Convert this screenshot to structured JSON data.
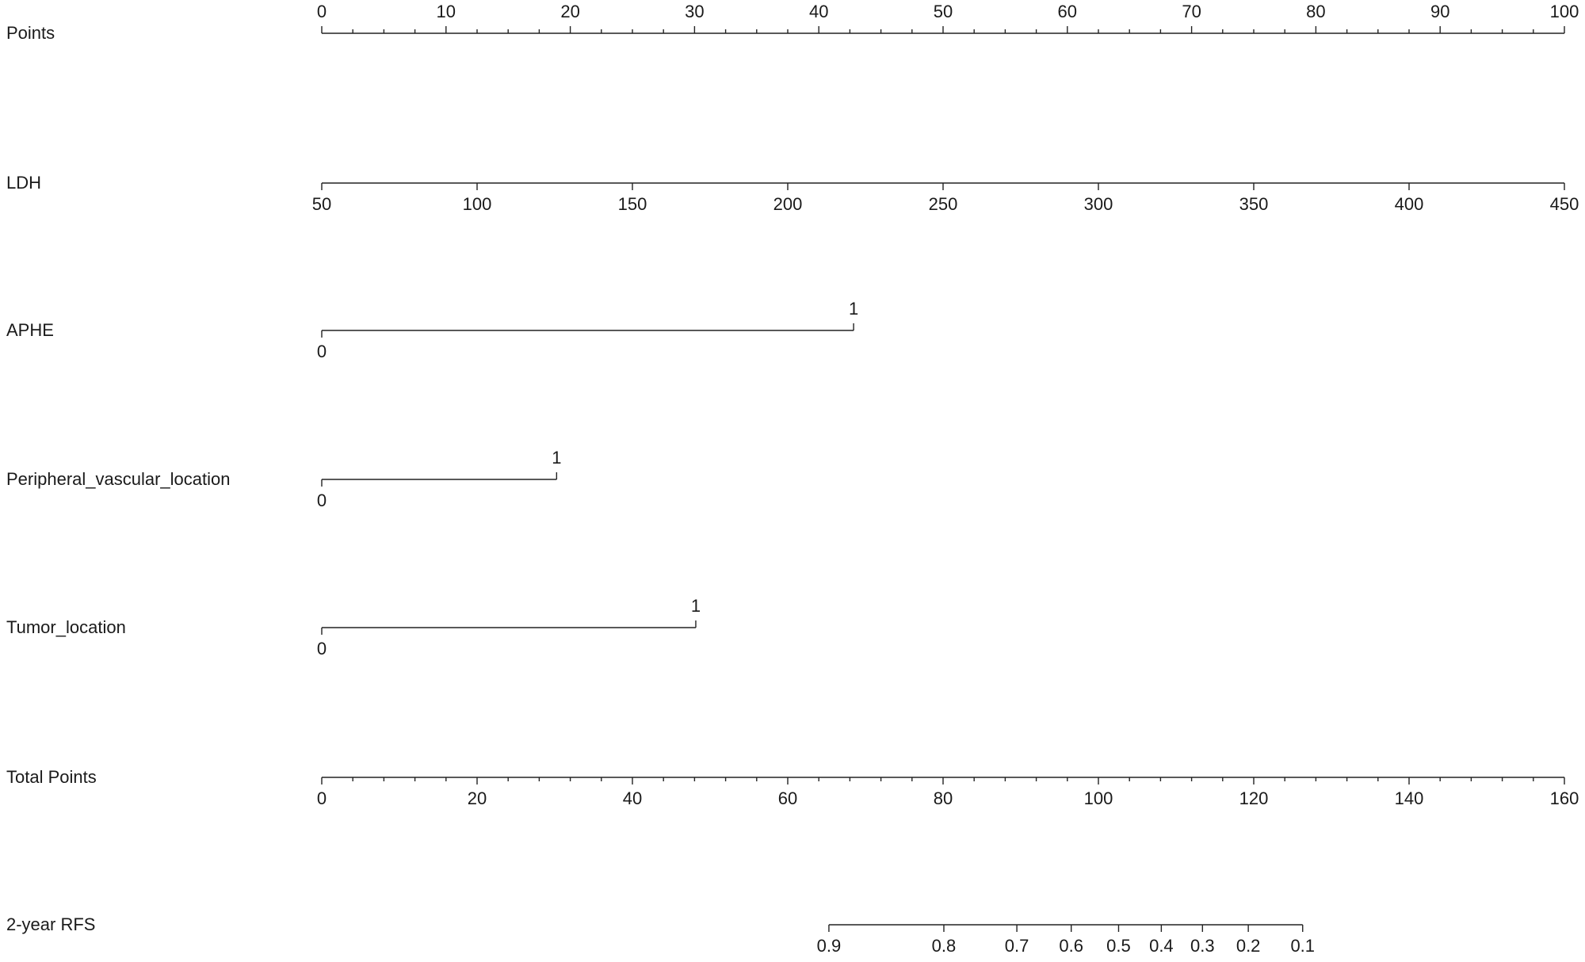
{
  "chart_data": {
    "type": "nomogram",
    "rows": [
      {
        "label": "Points",
        "xlim": [
          0,
          100
        ],
        "ticks": [
          0,
          10,
          20,
          30,
          40,
          50,
          60,
          70,
          80,
          90,
          100
        ],
        "minor_ticks": [
          2.5,
          5,
          7.5,
          12.5,
          15,
          17.5,
          22.5,
          25,
          27.5,
          32.5,
          35,
          37.5,
          42.5,
          45,
          47.5,
          52.5,
          55,
          57.5,
          62.5,
          65,
          67.5,
          72.5,
          75,
          77.5,
          82.5,
          85,
          87.5,
          92.5,
          95,
          97.5
        ]
      },
      {
        "label": "LDH",
        "xlim": [
          50,
          450
        ],
        "ticks": [
          50,
          100,
          150,
          200,
          250,
          300,
          350,
          400,
          450
        ]
      },
      {
        "label": "APHE",
        "ticks": [
          0,
          1
        ],
        "points": [
          0,
          42.8
        ]
      },
      {
        "label": "Peripheral_vascular_location",
        "ticks": [
          0,
          1
        ],
        "points": [
          0,
          18.9
        ]
      },
      {
        "label": "Tumor_location",
        "ticks": [
          0,
          1
        ],
        "points": [
          0,
          30.1
        ]
      },
      {
        "label": "Total Points",
        "xlim": [
          0,
          160
        ],
        "ticks": [
          0,
          20,
          40,
          60,
          80,
          100,
          120,
          140,
          160
        ],
        "minor_ticks": [
          4,
          8,
          12,
          16,
          24,
          28,
          32,
          36,
          44,
          48,
          52,
          56,
          64,
          68,
          72,
          76,
          84,
          88,
          92,
          96,
          104,
          108,
          112,
          116,
          124,
          128,
          132,
          136,
          144,
          148,
          152,
          156
        ]
      },
      {
        "label": "2-year RFS",
        "ticks": [
          0.9,
          0.8,
          0.7,
          0.6,
          0.5,
          0.4,
          0.3,
          0.2,
          0.1
        ],
        "total_points": [
          65.3,
          80.1,
          89.5,
          96.5,
          102.6,
          108.1,
          113.4,
          119.3,
          126.3
        ]
      }
    ]
  }
}
